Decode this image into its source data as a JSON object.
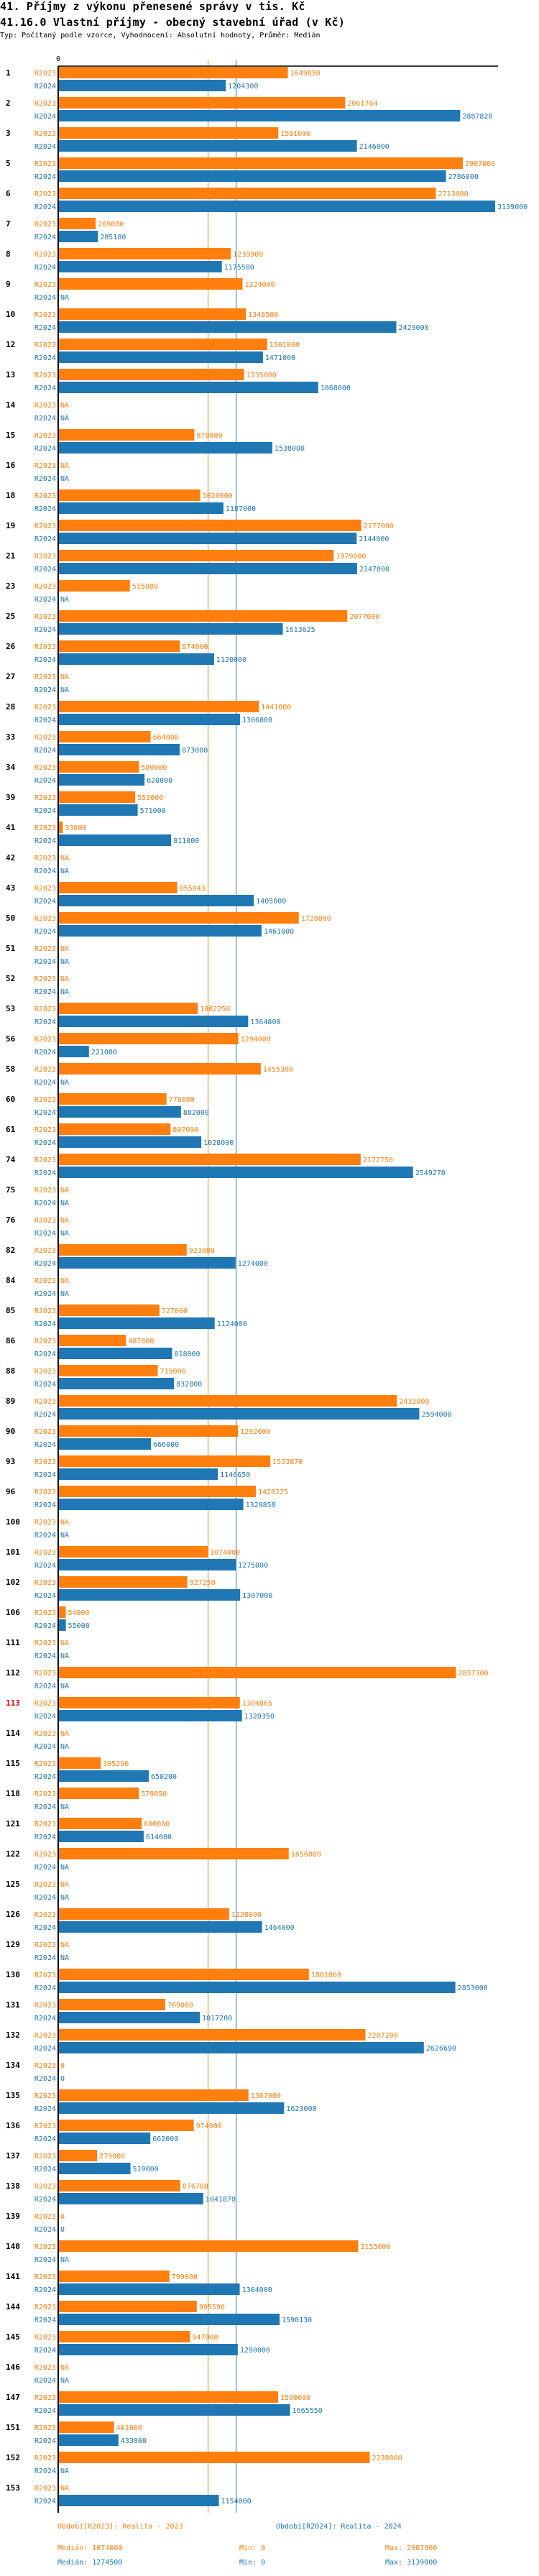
{
  "header": {
    "title": "41. Příjmy z výkonu přenesené správy v tis. Kč",
    "subtitle": "41.16.0 Vlastní příjmy - obecný stavební úřad (v Kč)",
    "info": "Typ: Počítaný podle vzorce, Vyhodnocení: Absolutní hodnoty, Průměr: Medián"
  },
  "colors": {
    "R2023": "#ff7f0e",
    "R2024": "#1f77b4",
    "highlight": "#e8000b",
    "axis": "#000000"
  },
  "chart_data": {
    "type": "bar",
    "orientation": "horizontal",
    "title": "41.16.0 Vlastní příjmy - obecný stavební úřad (v Kč)",
    "xlabel": "",
    "ylabel": "",
    "x_tick_labels": [
      "0"
    ],
    "xlim": [
      0,
      3139000
    ],
    "series_names": [
      "R2023",
      "R2024"
    ],
    "na_label": "NA",
    "highlighted_category": "113",
    "medians": {
      "R2023": 1074000,
      "R2024": 1274500
    },
    "categories": [
      "1",
      "2",
      "3",
      "5",
      "6",
      "7",
      "8",
      "9",
      "10",
      "12",
      "13",
      "14",
      "15",
      "16",
      "18",
      "19",
      "21",
      "23",
      "25",
      "26",
      "27",
      "28",
      "33",
      "34",
      "39",
      "41",
      "42",
      "43",
      "50",
      "51",
      "52",
      "53",
      "56",
      "58",
      "60",
      "61",
      "74",
      "75",
      "76",
      "82",
      "84",
      "85",
      "86",
      "88",
      "89",
      "90",
      "93",
      "96",
      "100",
      "101",
      "102",
      "106",
      "111",
      "112",
      "113",
      "114",
      "115",
      "118",
      "121",
      "122",
      "125",
      "126",
      "129",
      "130",
      "131",
      "132",
      "134",
      "135",
      "136",
      "137",
      "138",
      "139",
      "140",
      "141",
      "144",
      "145",
      "146",
      "147",
      "151",
      "152",
      "153"
    ],
    "series": [
      {
        "name": "R2023",
        "values": [
          1649850,
          2061764,
          1581000,
          2907000,
          2713000,
          269000,
          1239900,
          1324000,
          1348500,
          1501000,
          1335000,
          null,
          978000,
          null,
          1020000,
          2177000,
          1979000,
          515080,
          2077000,
          874000,
          null,
          1441000,
          664000,
          580000,
          553000,
          33000,
          null,
          855043,
          1728000,
          null,
          null,
          1002250,
          1294000,
          1455300,
          778000,
          807000,
          2172750,
          null,
          null,
          923000,
          null,
          727000,
          487000,
          715000,
          2433000,
          1292000,
          1523870,
          1420225,
          null,
          1074000,
          927250,
          54000,
          null,
          2857300,
          1304865,
          null,
          305290,
          579050,
          600000,
          1656000,
          null,
          1228000,
          null,
          1801000,
          769000,
          2207200,
          0,
          1367000,
          974000,
          279000,
          876700,
          0,
          2155000,
          799000,
          995590,
          947000,
          null,
          1580000,
          401000,
          2238000,
          null
        ]
      },
      {
        "name": "R2024",
        "values": [
          1204300,
          2887820,
          2146000,
          2786000,
          3139000,
          285180,
          1175500,
          null,
          2429000,
          1471000,
          1868000,
          null,
          1538000,
          null,
          1187000,
          2144000,
          2147000,
          null,
          1613625,
          1120000,
          null,
          1306000,
          873000,
          620000,
          571000,
          811000,
          null,
          1405000,
          1461000,
          null,
          null,
          1364800,
          221000,
          null,
          882000,
          1028000,
          2549270,
          null,
          null,
          1274000,
          null,
          1124000,
          818000,
          832000,
          2594000,
          666000,
          1146650,
          1329850,
          null,
          1275000,
          1307000,
          55000,
          null,
          null,
          1320350,
          null,
          650200,
          null,
          614000,
          null,
          null,
          1464000,
          null,
          2853000,
          1017200,
          2626690,
          0,
          1623000,
          662000,
          519000,
          1041870,
          0,
          null,
          1304000,
          1590130,
          1290000,
          null,
          1665550,
          433000,
          null,
          1154000
        ]
      }
    ],
    "legend": [
      {
        "series": "R2023",
        "label": "Období[R2023]: Realita - 2023"
      },
      {
        "series": "R2024",
        "label": "Období[R2024]: Realita - 2024"
      }
    ],
    "stats": [
      {
        "series": "R2023",
        "median": "Medián: 1074000",
        "min": "Min: 0",
        "max": "Max: 2907000"
      },
      {
        "series": "R2024",
        "median": "Medián: 1274500",
        "min": "Min: 0",
        "max": "Max: 3139000"
      }
    ]
  }
}
